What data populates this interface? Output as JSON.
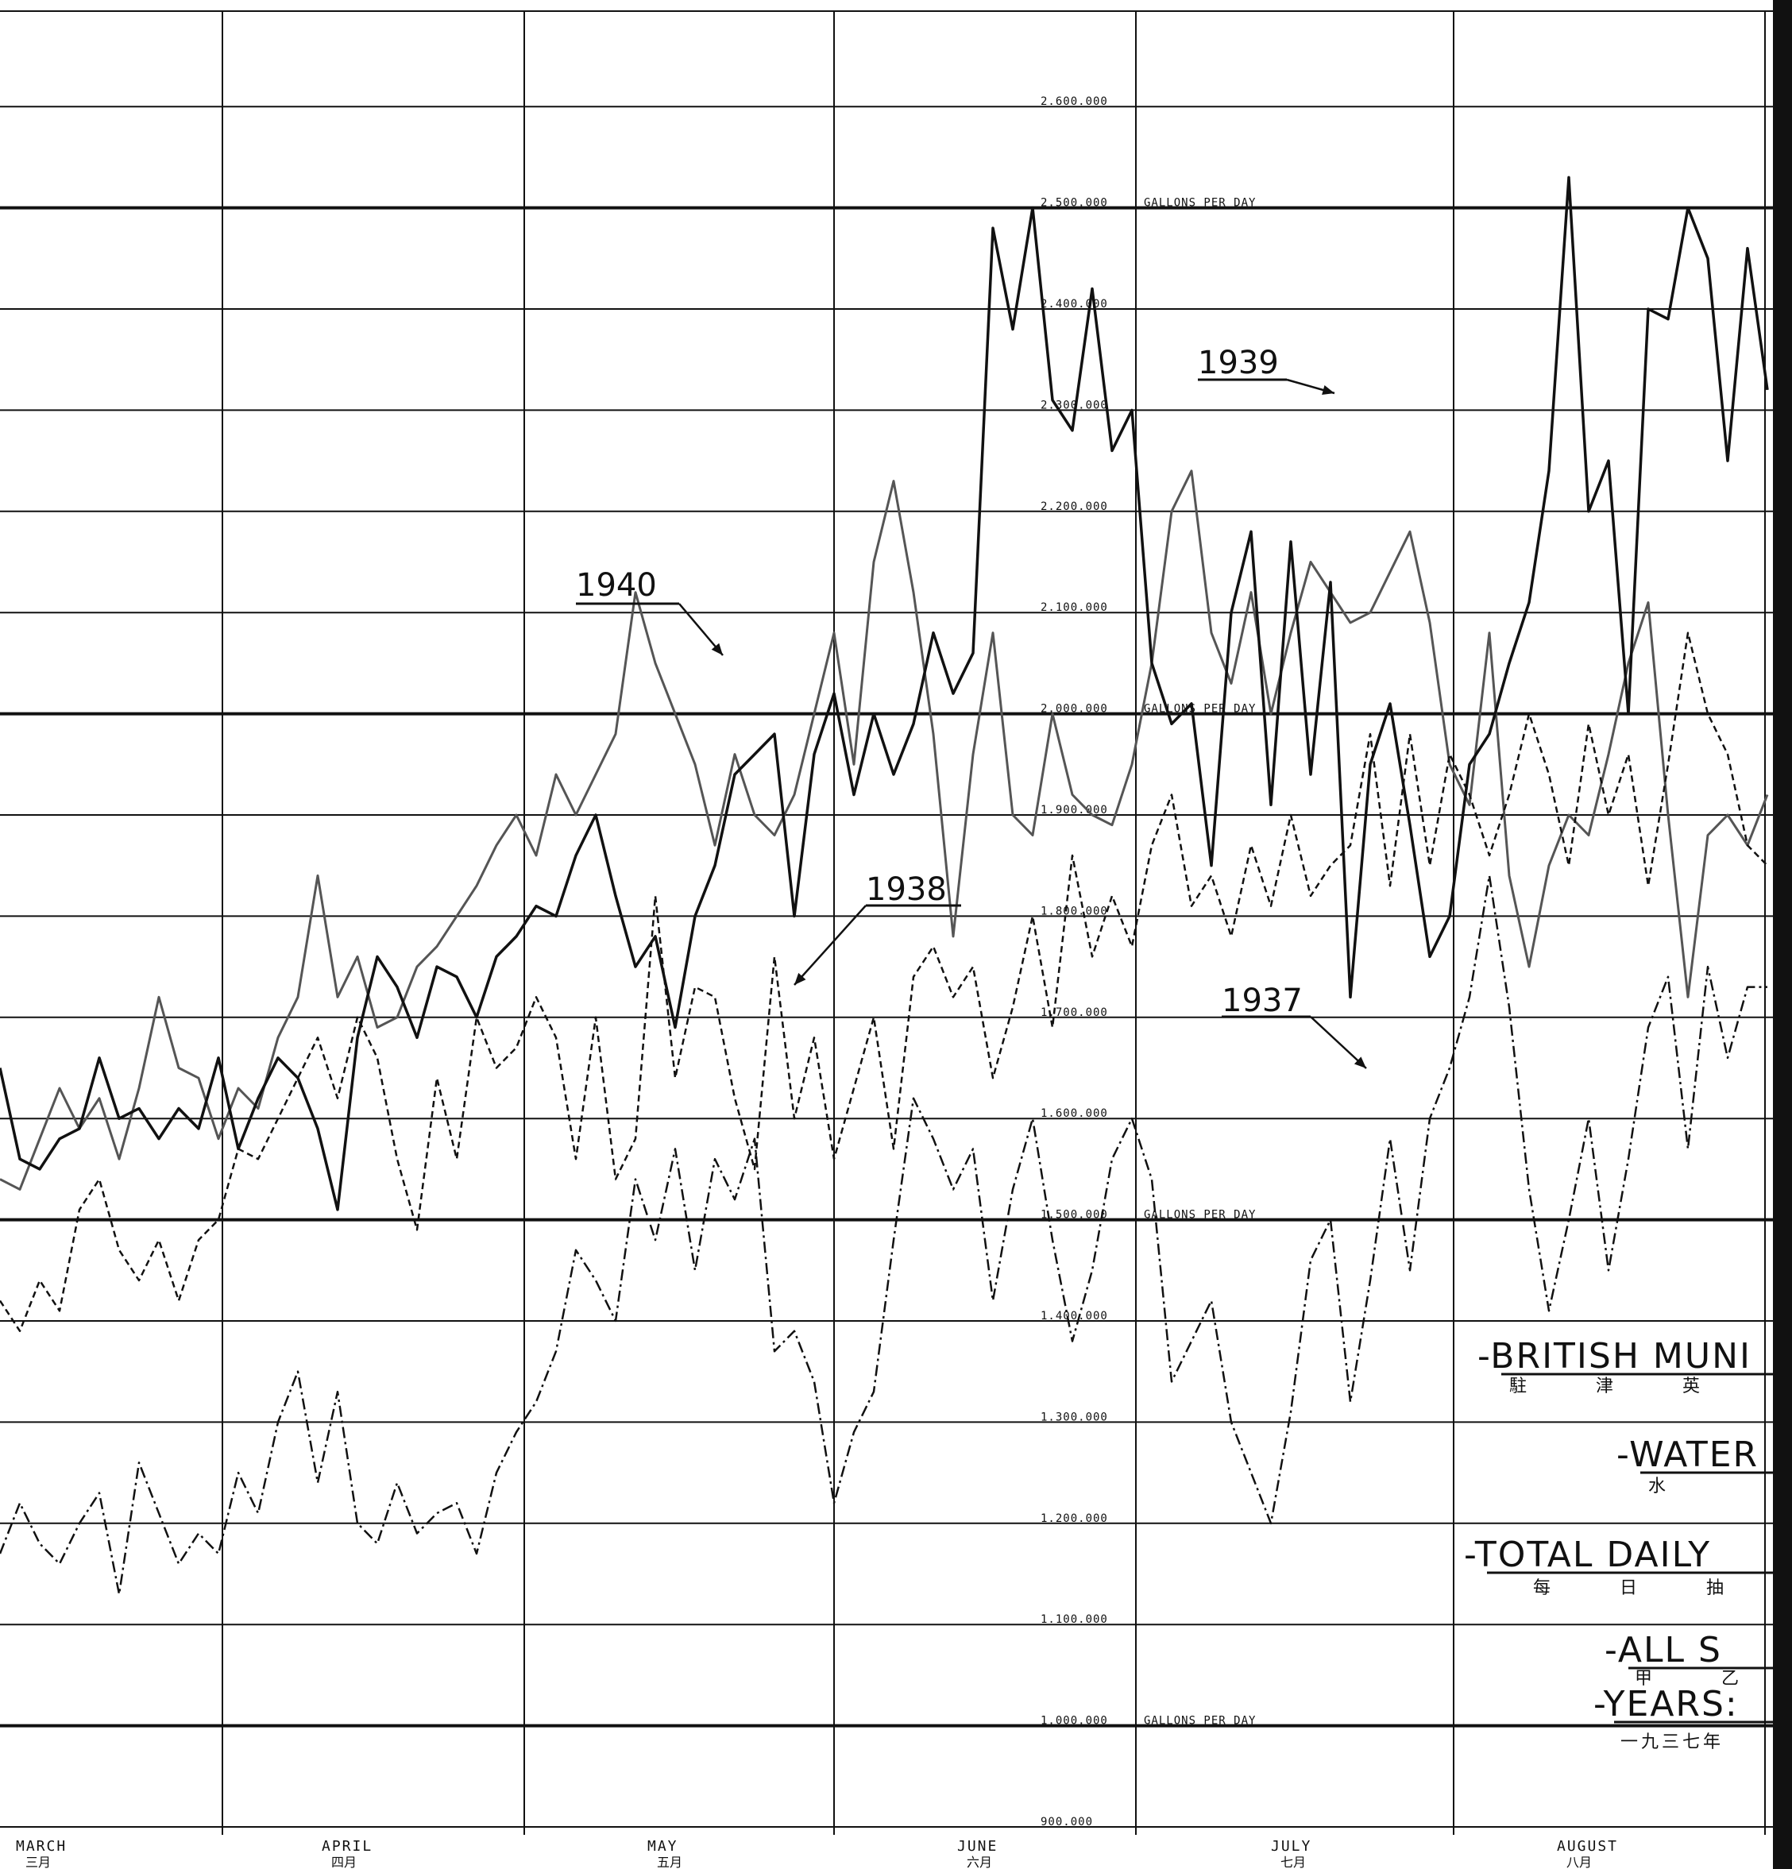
{
  "chart_data": {
    "type": "line",
    "yticks": [
      2600000,
      2500000,
      2400000,
      2300000,
      2200000,
      2100000,
      2000000,
      1900000,
      1800000,
      1700000,
      1600000,
      1500000,
      1400000,
      1300000,
      1200000,
      1100000,
      1000000,
      900000
    ],
    "ytick_labels": [
      "2.600.000",
      "2.500.000",
      "2.400.000",
      "2.300.000",
      "2.200.000",
      "2.100.000",
      "2.000.000",
      "1.900.000",
      "1.800.000",
      "1.700.000",
      "1.600.000",
      "1.500.000",
      "1.400.000",
      "1.300.000",
      "1.200.000",
      "1.100.000",
      "1.000.000",
      "900.000"
    ],
    "unit_label": "GALLONS PER DAY",
    "unit_label_at": [
      2500000,
      2000000,
      1500000,
      1000000
    ],
    "ylim": [
      875000,
      2725000
    ],
    "months": [
      {
        "label": "MARCH",
        "cn": "三月",
        "start": 0
      },
      {
        "label": "APRIL",
        "cn": "四月",
        "start": 31
      },
      {
        "label": "MAY",
        "cn": "五月",
        "start": 61
      },
      {
        "label": "JUNE",
        "cn": "六月",
        "start": 92
      },
      {
        "label": "JULY",
        "cn": "七月",
        "start": 122
      },
      {
        "label": "AUGUST",
        "cn": "八月",
        "start": 153
      }
    ],
    "x_range_days": [
      0,
      178
    ],
    "series": [
      {
        "name": "1940",
        "style": "solid-grey",
        "color": "#555555",
        "x": [
          0,
          2,
          4,
          6,
          8,
          10,
          12,
          14,
          16,
          18,
          20,
          22,
          24,
          26,
          28,
          30,
          32,
          34,
          36,
          38,
          40,
          42,
          44,
          46,
          48,
          50,
          52,
          54,
          56,
          58,
          60,
          62,
          64,
          66,
          68,
          70,
          72,
          74,
          76,
          78,
          80,
          82,
          84,
          86,
          88,
          90,
          92,
          94,
          96,
          98,
          100,
          102,
          104,
          106,
          108,
          110,
          112,
          114,
          116,
          118,
          120,
          122,
          124,
          126,
          128,
          130,
          132,
          134,
          136,
          138,
          140,
          142,
          144,
          146,
          148,
          150,
          152,
          154,
          156,
          158,
          160,
          162,
          164,
          166,
          168,
          170,
          172,
          174,
          176,
          178
        ],
        "values": [
          1540000,
          1530000,
          1580000,
          1630000,
          1590000,
          1620000,
          1560000,
          1630000,
          1720000,
          1650000,
          1640000,
          1580000,
          1630000,
          1610000,
          1680000,
          1720000,
          1840000,
          1720000,
          1760000,
          1690000,
          1700000,
          1750000,
          1770000,
          1800000,
          1830000,
          1870000,
          1900000,
          1860000,
          1940000,
          1900000,
          1940000,
          1980000,
          2120000,
          2050000,
          2000000,
          1950000,
          1870000,
          1960000,
          1900000,
          1880000,
          1920000,
          2000000,
          2080000,
          1950000,
          2150000,
          2230000,
          2120000,
          1980000,
          1780000,
          1960000,
          2080000,
          1900000,
          1880000,
          2000000,
          1920000,
          1900000,
          1890000,
          1950000,
          2050000,
          2200000,
          2240000,
          2080000,
          2030000,
          2120000,
          2000000,
          2080000,
          2150000,
          2120000,
          2090000,
          2100000,
          2140000,
          2180000,
          2090000,
          1950000,
          1910000,
          2080000,
          1840000,
          1750000,
          1850000,
          1900000,
          1880000,
          1960000,
          2050000,
          2110000,
          1900000,
          1720000,
          1880000,
          1900000,
          1870000,
          1920000
        ]
      },
      {
        "name": "1939",
        "style": "solid-black",
        "color": "#111111",
        "x": [
          0,
          2,
          4,
          6,
          8,
          10,
          12,
          14,
          16,
          18,
          20,
          22,
          24,
          26,
          28,
          30,
          32,
          34,
          36,
          38,
          40,
          42,
          44,
          46,
          48,
          50,
          52,
          54,
          56,
          58,
          60,
          62,
          64,
          66,
          68,
          70,
          72,
          74,
          76,
          78,
          80,
          82,
          84,
          86,
          88,
          90,
          92,
          94,
          96,
          98,
          100,
          102,
          104,
          106,
          108,
          110,
          112,
          114,
          116,
          118,
          120,
          122,
          124,
          126,
          128,
          130,
          132,
          134,
          136,
          138,
          140,
          142,
          144,
          146,
          148,
          150,
          152,
          154,
          156,
          158,
          160,
          162,
          164,
          166,
          168,
          170,
          172,
          174,
          176,
          178
        ],
        "values": [
          1650000,
          1560000,
          1550000,
          1580000,
          1590000,
          1660000,
          1600000,
          1610000,
          1580000,
          1610000,
          1590000,
          1660000,
          1570000,
          1620000,
          1660000,
          1640000,
          1590000,
          1510000,
          1680000,
          1760000,
          1730000,
          1680000,
          1750000,
          1740000,
          1700000,
          1760000,
          1780000,
          1810000,
          1800000,
          1860000,
          1900000,
          1820000,
          1750000,
          1780000,
          1690000,
          1800000,
          1850000,
          1940000,
          1960000,
          1980000,
          1800000,
          1960000,
          2020000,
          1920000,
          2000000,
          1940000,
          1990000,
          2080000,
          2020000,
          2060000,
          2480000,
          2380000,
          2500000,
          2310000,
          2280000,
          2420000,
          2260000,
          2300000,
          2050000,
          1990000,
          2010000,
          1850000,
          2100000,
          2180000,
          1910000,
          2170000,
          1940000,
          2130000,
          1720000,
          1950000,
          2010000,
          1890000,
          1760000,
          1800000,
          1950000,
          1980000,
          2050000,
          2110000,
          2240000,
          2530000,
          2200000,
          2250000,
          2000000,
          2400000,
          2390000,
          2500000,
          2450000,
          2250000,
          2460000,
          2320000
        ]
      },
      {
        "name": "1938",
        "style": "dashed",
        "color": "#111111",
        "x": [
          0,
          2,
          4,
          6,
          8,
          10,
          12,
          14,
          16,
          18,
          20,
          22,
          24,
          26,
          28,
          30,
          32,
          34,
          36,
          38,
          40,
          42,
          44,
          46,
          48,
          50,
          52,
          54,
          56,
          58,
          60,
          62,
          64,
          66,
          68,
          70,
          72,
          74,
          76,
          78,
          80,
          82,
          84,
          86,
          88,
          90,
          92,
          94,
          96,
          98,
          100,
          102,
          104,
          106,
          108,
          110,
          112,
          114,
          116,
          118,
          120,
          122,
          124,
          126,
          128,
          130,
          132,
          134,
          136,
          138,
          140,
          142,
          144,
          146,
          148,
          150,
          152,
          154,
          156,
          158,
          160,
          162,
          164,
          166,
          168,
          170,
          172,
          174,
          176,
          178
        ],
        "values": [
          1420000,
          1390000,
          1440000,
          1410000,
          1510000,
          1540000,
          1470000,
          1440000,
          1480000,
          1420000,
          1480000,
          1500000,
          1570000,
          1560000,
          1600000,
          1640000,
          1680000,
          1620000,
          1700000,
          1660000,
          1560000,
          1490000,
          1640000,
          1560000,
          1700000,
          1650000,
          1670000,
          1720000,
          1680000,
          1560000,
          1700000,
          1540000,
          1580000,
          1820000,
          1640000,
          1730000,
          1720000,
          1620000,
          1550000,
          1760000,
          1600000,
          1680000,
          1560000,
          1630000,
          1700000,
          1570000,
          1740000,
          1770000,
          1720000,
          1750000,
          1640000,
          1710000,
          1800000,
          1690000,
          1860000,
          1760000,
          1820000,
          1770000,
          1870000,
          1920000,
          1810000,
          1840000,
          1780000,
          1870000,
          1810000,
          1900000,
          1820000,
          1850000,
          1870000,
          1980000,
          1830000,
          1980000,
          1850000,
          1960000,
          1920000,
          1860000,
          1920000,
          2000000,
          1940000,
          1850000,
          1990000,
          1900000,
          1960000,
          1830000,
          1950000,
          2080000,
          2000000,
          1960000,
          1870000,
          1850000
        ]
      },
      {
        "name": "1937",
        "style": "dash-dot",
        "color": "#111111",
        "x": [
          0,
          2,
          4,
          6,
          8,
          10,
          12,
          14,
          16,
          18,
          20,
          22,
          24,
          26,
          28,
          30,
          32,
          34,
          36,
          38,
          40,
          42,
          44,
          46,
          48,
          50,
          52,
          54,
          56,
          58,
          60,
          62,
          64,
          66,
          68,
          70,
          72,
          74,
          76,
          78,
          80,
          82,
          84,
          86,
          88,
          90,
          92,
          94,
          96,
          98,
          100,
          102,
          104,
          106,
          108,
          110,
          112,
          114,
          116,
          118,
          120,
          122,
          124,
          126,
          128,
          130,
          132,
          134,
          136,
          138,
          140,
          142,
          144,
          146,
          148,
          150,
          152,
          154,
          156,
          158,
          160,
          162,
          164,
          166,
          168,
          170,
          172,
          174,
          176,
          178
        ],
        "values": [
          1170000,
          1220000,
          1180000,
          1160000,
          1200000,
          1230000,
          1130000,
          1260000,
          1210000,
          1160000,
          1190000,
          1170000,
          1250000,
          1210000,
          1300000,
          1350000,
          1240000,
          1330000,
          1200000,
          1180000,
          1240000,
          1190000,
          1210000,
          1220000,
          1170000,
          1250000,
          1290000,
          1320000,
          1370000,
          1470000,
          1440000,
          1400000,
          1540000,
          1480000,
          1570000,
          1450000,
          1560000,
          1520000,
          1580000,
          1370000,
          1390000,
          1340000,
          1220000,
          1290000,
          1330000,
          1480000,
          1620000,
          1580000,
          1530000,
          1570000,
          1420000,
          1530000,
          1600000,
          1480000,
          1380000,
          1450000,
          1560000,
          1600000,
          1540000,
          1340000,
          1380000,
          1420000,
          1300000,
          1250000,
          1200000,
          1310000,
          1460000,
          1500000,
          1320000,
          1440000,
          1580000,
          1450000,
          1600000,
          1650000,
          1720000,
          1840000,
          1710000,
          1530000,
          1410000,
          1500000,
          1600000,
          1450000,
          1560000,
          1690000,
          1740000,
          1570000,
          1750000,
          1660000,
          1730000,
          1730000
        ]
      }
    ],
    "annotations": [
      "1940",
      "1939",
      "1938",
      "1937"
    ]
  },
  "title_block": {
    "line1": "-BRITISH MUNI",
    "line1_cn": "駐 津 英",
    "line2": "-WATER",
    "line2_cn": "水",
    "line3": "-TOTAL DAILY",
    "line3_cn": "每 日 抽",
    "line4": "-ALL S",
    "line4_cn": "甲 乙",
    "line5": "-YEARS:",
    "line5_cn": "一九三七年"
  }
}
